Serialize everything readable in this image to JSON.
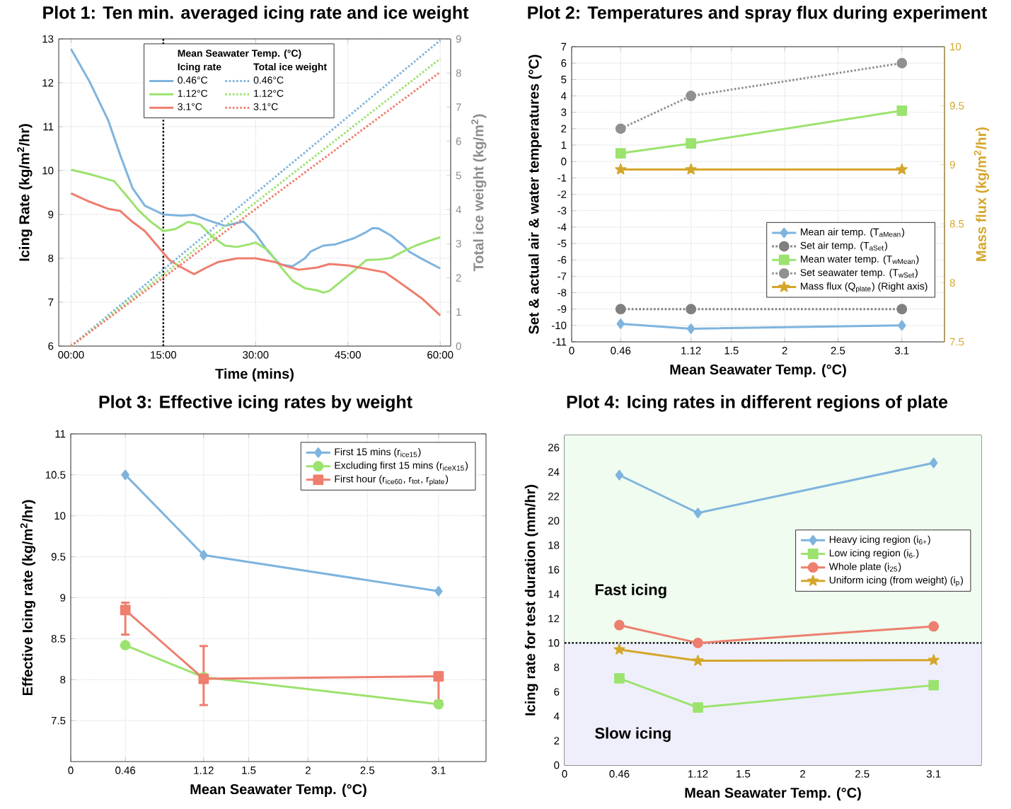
{
  "chart_data": [
    {
      "type": "line",
      "title": "Plot 1: Ten min. averaged icing rate and ice weight",
      "xlabel": "Time (mins)",
      "ylabel": "Icing Rate (kg/m$^{2}$/hr)",
      "y2label": "Total ice weight (kg/m$^{2}$)",
      "legend_title": "Mean Seawater Temp. (°C)",
      "annotations": [
        "Icing rate",
        "Total ice weight"
      ],
      "xlim": [
        -2,
        61.7
      ],
      "ylim": [
        6,
        13
      ],
      "y2lim": [
        0,
        9
      ],
      "xticks": [
        {
          "value": 0,
          "label": "00:00"
        },
        {
          "value": 15,
          "label": "15:00"
        },
        {
          "value": 30,
          "label": "30:00"
        },
        {
          "value": 45,
          "label": "45:00"
        },
        {
          "value": 60,
          "label": "60:00"
        }
      ],
      "yticks": [
        6,
        7,
        8,
        9,
        10,
        11,
        12,
        13
      ],
      "y2ticks": [
        0,
        1,
        2,
        3,
        4,
        5,
        6,
        7,
        8,
        9
      ],
      "grid": true,
      "legend": "top",
      "ref_lines": [
        {
          "axis": "x",
          "value": 15,
          "color": "#000000",
          "line_style": "dotted"
        }
      ],
      "series": [
        {
          "name": "0.46°C",
          "color": "#7eb4de",
          "x": [
            0,
            3,
            6,
            8,
            10,
            12,
            15,
            18,
            20,
            22,
            25,
            28,
            30,
            32,
            34,
            36,
            38,
            39,
            41,
            43,
            46,
            48,
            49,
            50,
            52,
            54,
            55,
            57,
            60
          ],
          "values": [
            12.77,
            12.03,
            11.16,
            10.35,
            9.6,
            9.2,
            9.0,
            8.97,
            8.99,
            8.88,
            8.74,
            8.84,
            8.56,
            8.16,
            7.86,
            7.82,
            8.0,
            8.16,
            8.29,
            8.32,
            8.46,
            8.6,
            8.69,
            8.68,
            8.52,
            8.29,
            8.15,
            7.99,
            7.77
          ]
        },
        {
          "name": "1.12°C",
          "color": "#9be36e",
          "x": [
            0,
            3,
            5,
            7,
            9,
            11,
            13,
            15,
            17,
            19,
            21,
            23,
            25,
            27,
            29,
            30,
            32,
            34,
            36,
            38,
            40,
            41,
            42,
            44,
            46,
            48,
            50,
            52,
            54,
            56,
            58,
            60
          ],
          "values": [
            10.02,
            9.92,
            9.84,
            9.76,
            9.43,
            9.09,
            8.83,
            8.62,
            8.67,
            8.83,
            8.77,
            8.49,
            8.29,
            8.26,
            8.32,
            8.36,
            8.19,
            7.82,
            7.49,
            7.32,
            7.27,
            7.22,
            7.26,
            7.49,
            7.72,
            7.96,
            7.97,
            8.01,
            8.16,
            8.29,
            8.39,
            8.48
          ]
        },
        {
          "name": "3.1°C",
          "color": "#ee7e6e",
          "x": [
            0,
            3,
            6,
            8,
            10,
            12,
            14,
            16,
            18,
            20,
            22,
            24,
            27,
            30,
            33,
            35,
            37,
            40,
            42,
            45,
            48,
            51,
            53,
            55,
            57,
            60
          ],
          "values": [
            9.48,
            9.29,
            9.13,
            9.08,
            8.83,
            8.62,
            8.29,
            7.96,
            7.79,
            7.64,
            7.79,
            7.92,
            8.0,
            8.0,
            7.92,
            7.82,
            7.74,
            7.79,
            7.87,
            7.84,
            7.76,
            7.68,
            7.49,
            7.29,
            7.09,
            6.7
          ]
        },
        {
          "name": "0.46°C",
          "color": "#7eb4de",
          "axis": "y2",
          "line_style": "dotted",
          "x": [
            0,
            60
          ],
          "values": [
            0,
            8.96
          ]
        },
        {
          "name": "1.12°C",
          "color": "#9be36e",
          "axis": "y2",
          "line_style": "dotted",
          "x": [
            0,
            60
          ],
          "values": [
            0,
            8.42
          ]
        },
        {
          "name": "3.1°C",
          "color": "#ee7e6e",
          "axis": "y2",
          "line_style": "dotted",
          "x": [
            0,
            60
          ],
          "values": [
            0,
            8.03
          ]
        }
      ]
    },
    {
      "type": "line",
      "title": "Plot 2: Temperatures and spray flux during experiment",
      "xlabel": "Mean Seawater Temp. (°C)",
      "ylabel": "Set & actual air & water temperatures (°C)",
      "y2label": "Mass flux (kg/m$^{2}$/hr)",
      "x": [
        0.46,
        1.12,
        3.1
      ],
      "xlim": [
        0,
        3.5
      ],
      "ylim": [
        -11,
        7
      ],
      "y2lim": [
        7.5,
        10
      ],
      "xticks": [
        0,
        0.46,
        1.12,
        1.5,
        2,
        2.5,
        3.1
      ],
      "yticks": [
        -11,
        -10,
        -9,
        -8,
        -7,
        -6,
        -5,
        -4,
        -3,
        -2,
        -1,
        0,
        1,
        2,
        3,
        4,
        5,
        6,
        7
      ],
      "y2ticks": [
        7.5,
        8,
        8.5,
        9,
        9.5,
        10
      ],
      "grid": true,
      "legend": "bottom right",
      "series": [
        {
          "name": "Mean air temp. (T$_{aMean}$)",
          "color": "#7eb4de",
          "marker": "diamond",
          "values": [
            -9.9,
            -10.2,
            -10.0
          ]
        },
        {
          "name": "Set air temp.  (T$_{aSet}$)",
          "color": "#808080",
          "marker": "circle",
          "line_style": "dotted",
          "values": [
            -9,
            -9,
            -9
          ]
        },
        {
          "name": "Mean water temp. (T$_{wMean}$)",
          "color": "#9be36e",
          "marker": "square",
          "values": [
            0.5,
            1.1,
            3.1
          ]
        },
        {
          "name": "Set seawater temp. (T$_{wSet}$)",
          "color": "#909090",
          "marker": "circle",
          "line_style": "dotted",
          "values": [
            2,
            4,
            6
          ]
        },
        {
          "name": "Mass flux (Q$_{plate}$) (Right axis)",
          "color": "#d4a62a",
          "marker": "star",
          "axis": "y2",
          "values": [
            8.96,
            8.96,
            8.96
          ]
        }
      ]
    },
    {
      "type": "line",
      "title": "Plot 3: Effective icing rates by weight",
      "xlabel": "Mean Seawater Temp. (°C)",
      "ylabel": "Effective Icing rate (kg/m$^{2}$/hr)",
      "x": [
        0.46,
        1.12,
        3.1
      ],
      "xlim": [
        0,
        3.5
      ],
      "ylim": [
        7,
        11
      ],
      "xticks": [
        0,
        0.46,
        1.12,
        1.5,
        2,
        2.5,
        3.1
      ],
      "yticks": [
        7.5,
        8,
        8.5,
        9,
        9.5,
        10,
        10.5,
        11
      ],
      "grid": true,
      "legend": "top right",
      "series": [
        {
          "name": "First 15 mins (r$_{ice15}$)",
          "color": "#7eb4de",
          "marker": "diamond",
          "values": [
            10.5,
            9.52,
            9.08
          ]
        },
        {
          "name": "Excluding first 15 mins (r$_{iceX15}$)",
          "color": "#9be36e",
          "marker": "circle",
          "values": [
            8.42,
            8.03,
            7.7
          ]
        },
        {
          "name": "First hour  (r$_{ice60}$, r$_{tot}$, r$_{plate}$)",
          "color": "#ee7e6e",
          "marker": "square",
          "values": [
            8.85,
            8.01,
            8.04
          ],
          "errors": [
            [
              8.55,
              8.94
            ],
            [
              7.69,
              8.41
            ],
            [
              7.74,
              8.09
            ]
          ]
        }
      ]
    },
    {
      "type": "line",
      "title": "Plot 4: Icing rates in different regions of plate",
      "xlabel": "Mean Seawater Temp. (°C)",
      "ylabel": "Icing rate for test duration (mm/hr)",
      "x": [
        0.46,
        1.12,
        3.1
      ],
      "xlim": [
        0,
        3.5
      ],
      "ylim": [
        0,
        27
      ],
      "xticks": [
        0,
        0.46,
        1.12,
        1.5,
        2,
        2.5,
        3.1
      ],
      "yticks": [
        0,
        2,
        4,
        6,
        8,
        10,
        12,
        14,
        16,
        18,
        20,
        22,
        24,
        26
      ],
      "grid": true,
      "legend": "right",
      "bands": [
        {
          "axis": "y",
          "from": 10,
          "to": 27,
          "label": "Fast icing",
          "color": "#effcef"
        },
        {
          "axis": "y",
          "from": 0,
          "to": 10,
          "label": "Slow icing",
          "color": "#efeffc"
        }
      ],
      "ref_lines": [
        {
          "axis": "y",
          "value": 10,
          "color": "#000000",
          "line_style": "dotted"
        }
      ],
      "series": [
        {
          "name": "Heavy icing region (i$_{6+}$)",
          "color": "#7eb4de",
          "marker": "diamond",
          "values": [
            23.74,
            20.64,
            24.74
          ]
        },
        {
          "name": "Low icing region (i$_{6-}$)",
          "color": "#9be36e",
          "marker": "square",
          "values": [
            7.1,
            4.72,
            6.54
          ]
        },
        {
          "name": "Whole plate (i$_{25}$)",
          "color": "#ee7e6e",
          "marker": "circle",
          "values": [
            11.46,
            10.0,
            11.36
          ]
        },
        {
          "name": "Uniform icing (from weight) (i$_{p}$)",
          "color": "#d4a62a",
          "marker": "star",
          "values": [
            9.46,
            8.54,
            8.59
          ]
        }
      ]
    }
  ]
}
